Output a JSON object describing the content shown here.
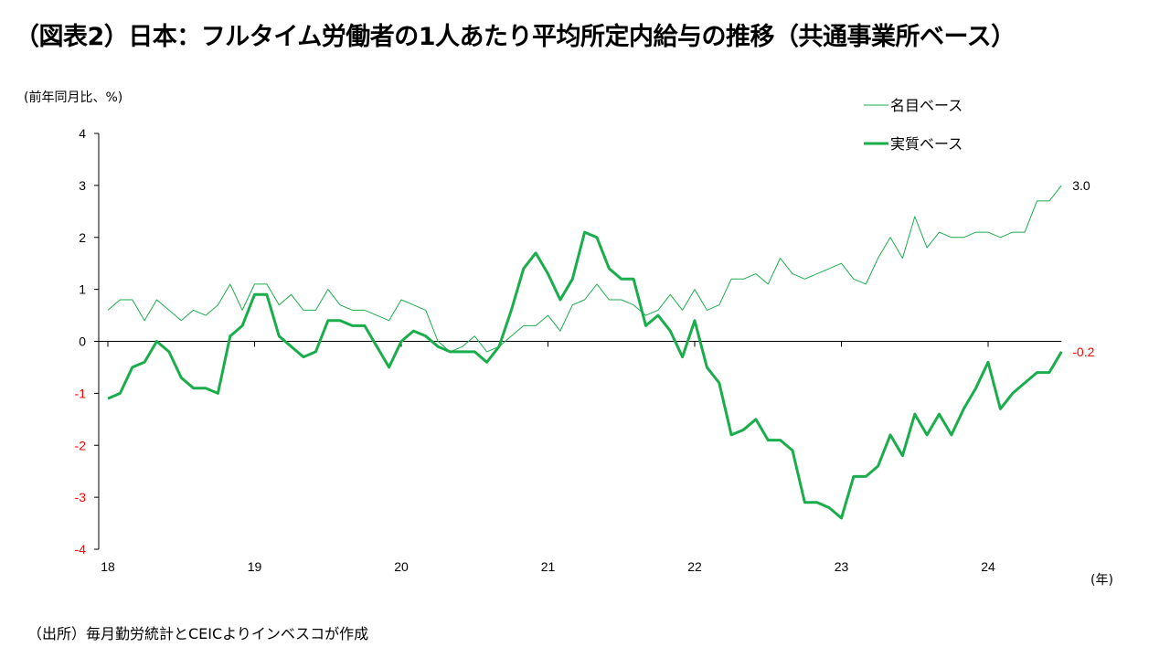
{
  "title": "（図表2）日本：フルタイム労働者の1人あたり平均所定内給与の推移（共通事業所ベース）",
  "y_unit_label": "(前年同月比、%)",
  "x_unit_label": "(年)",
  "source": "（出所）毎月勤労統計とCEICよりインベスコが作成",
  "colors": {
    "axis": "#000000",
    "negative_tick": "#ff0000",
    "series": "#1aad4b"
  },
  "chart_data": {
    "type": "line",
    "ylim": [
      -4,
      4
    ],
    "y_ticks": [
      "4",
      "3",
      "2",
      "1",
      "0",
      "-1",
      "-2",
      "-3",
      "-4"
    ],
    "x_ticks": [
      "18",
      "19",
      "20",
      "21",
      "22",
      "23",
      "24"
    ],
    "grid": false,
    "legend_position": "top-right",
    "series": [
      {
        "name": "名目ベース",
        "style": "thin",
        "end_label": "3.0",
        "values": [
          0.6,
          0.8,
          0.8,
          0.4,
          0.8,
          0.6,
          0.4,
          0.6,
          0.5,
          0.7,
          1.1,
          0.6,
          1.1,
          1.1,
          0.7,
          0.9,
          0.6,
          0.6,
          1.0,
          0.7,
          0.6,
          0.6,
          0.5,
          0.4,
          0.8,
          0.7,
          0.6,
          0.0,
          -0.2,
          -0.1,
          0.1,
          -0.2,
          -0.1,
          0.1,
          0.3,
          0.3,
          0.5,
          0.2,
          0.7,
          0.8,
          1.1,
          0.8,
          0.8,
          0.7,
          0.5,
          0.6,
          0.9,
          0.6,
          1.0,
          0.6,
          0.7,
          1.2,
          1.2,
          1.3,
          1.1,
          1.6,
          1.3,
          1.2,
          1.3,
          1.4,
          1.5,
          1.2,
          1.1,
          1.6,
          2.0,
          1.6,
          2.4,
          1.8,
          2.1,
          2.0,
          2.0,
          2.1,
          2.1,
          2.0,
          2.1,
          2.1,
          2.7,
          2.7,
          3.0
        ]
      },
      {
        "name": "実質ベース",
        "style": "thick",
        "end_label": "-0.2",
        "values": [
          -1.1,
          -1.0,
          -0.5,
          -0.4,
          0.0,
          -0.2,
          -0.7,
          -0.9,
          -0.9,
          -1.0,
          0.1,
          0.3,
          0.9,
          0.9,
          0.1,
          -0.1,
          -0.3,
          -0.2,
          0.4,
          0.4,
          0.3,
          0.3,
          -0.1,
          -0.5,
          0.0,
          0.2,
          0.1,
          -0.1,
          -0.2,
          -0.2,
          -0.2,
          -0.4,
          -0.1,
          0.6,
          1.4,
          1.7,
          1.3,
          0.8,
          1.2,
          2.1,
          2.0,
          1.4,
          1.2,
          1.2,
          0.3,
          0.5,
          0.2,
          -0.3,
          0.4,
          -0.5,
          -0.8,
          -1.8,
          -1.7,
          -1.5,
          -1.9,
          -1.9,
          -2.1,
          -3.1,
          -3.1,
          -3.2,
          -3.4,
          -2.6,
          -2.6,
          -2.4,
          -1.8,
          -2.2,
          -1.4,
          -1.8,
          -1.4,
          -1.8,
          -1.3,
          -0.9,
          -0.4,
          -1.3,
          -1.0,
          -0.8,
          -0.6,
          -0.6,
          -0.2
        ]
      }
    ]
  }
}
